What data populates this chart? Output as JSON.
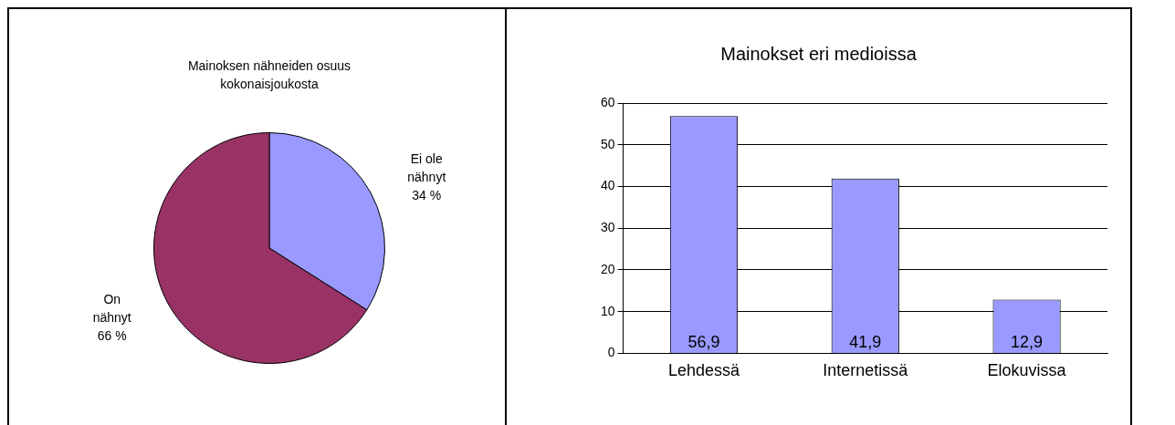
{
  "chart_data": [
    {
      "type": "pie",
      "title": "Mainoksen nähneiden osuus kokonaisjoukosta",
      "categories": [
        "Ei ole nähnyt",
        "On nähnyt"
      ],
      "values": [
        34,
        66
      ],
      "colors": [
        "#9999ff",
        "#993366"
      ],
      "value_labels": [
        "34 %",
        "66 %"
      ],
      "legend": false
    },
    {
      "type": "bar",
      "title": "Mainokset eri medioissa",
      "categories": [
        "Lehdessä",
        "Internetissä",
        "Elokuvissa"
      ],
      "values": [
        56.9,
        41.9,
        12.9
      ],
      "color": "#9999ff",
      "value_labels": [
        "56,9",
        "41,9",
        "12,9"
      ],
      "ylim": [
        0,
        60
      ],
      "yticks": [
        0,
        10,
        20,
        30,
        40,
        50,
        60
      ],
      "grid": "y",
      "legend": false
    }
  ]
}
